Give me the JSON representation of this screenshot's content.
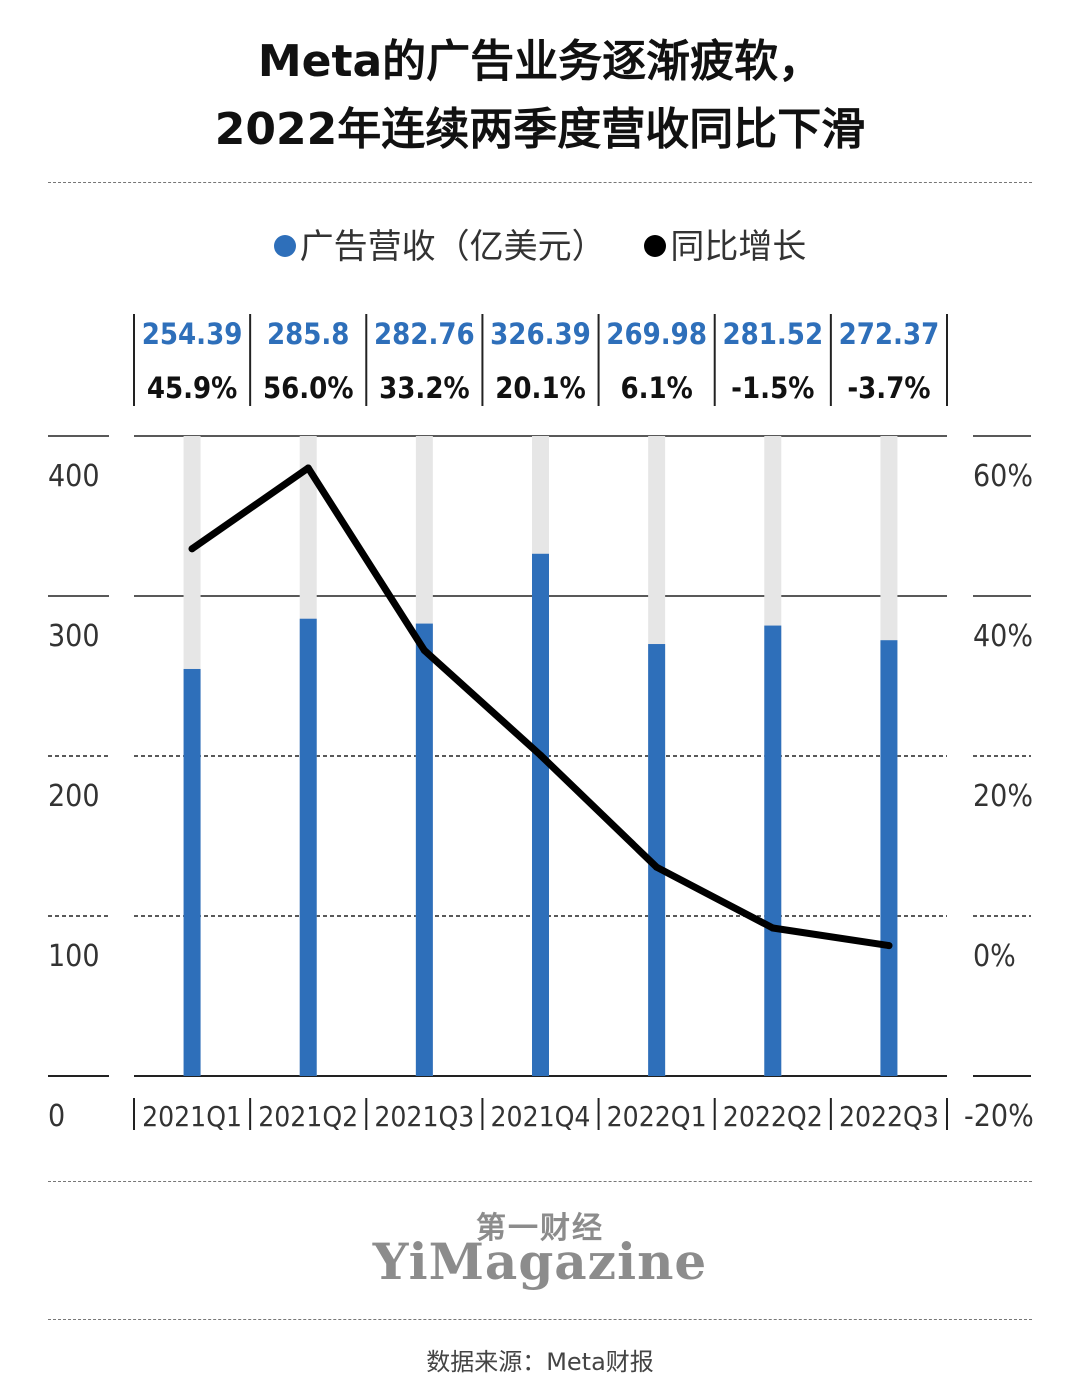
{
  "title": {
    "line1": "Meta的广告业务逐渐疲软，",
    "line2": "2022年连续两季度营收同比下滑"
  },
  "legend": {
    "revenue_label": "广告营收（亿美元）",
    "growth_label": "同比增长"
  },
  "colors": {
    "bar": "#2e6fba",
    "bar_track": "#e6e6e6",
    "line": "#000000",
    "value_text": "#2e6fba",
    "axis_text": "#333333"
  },
  "chart_data": {
    "type": "bar+line",
    "title": "Meta的广告业务逐渐疲软，2022年连续两季度营收同比下滑",
    "categories": [
      "2021Q1",
      "2021Q2",
      "2021Q3",
      "2021Q4",
      "2022Q1",
      "2022Q2",
      "2022Q3"
    ],
    "series": [
      {
        "name": "广告营收（亿美元）",
        "type": "bar",
        "axis": "left",
        "values": [
          254.39,
          285.8,
          282.76,
          326.39,
          269.98,
          281.52,
          272.37
        ],
        "labels": [
          "254.39",
          "285.8",
          "282.76",
          "326.39",
          "269.98",
          "281.52",
          "272.37"
        ]
      },
      {
        "name": "同比增长",
        "type": "line",
        "axis": "right",
        "values": [
          45.9,
          56.0,
          33.2,
          20.1,
          6.1,
          -1.5,
          -3.7
        ],
        "labels": [
          "45.9%",
          "56.0%",
          "33.2%",
          "20.1%",
          "6.1%",
          "-1.5%",
          "-3.7%"
        ]
      }
    ],
    "left_axis": {
      "ylim": [
        0,
        400
      ],
      "ticks": [
        "0",
        "100",
        "200",
        "300",
        "400"
      ]
    },
    "right_axis": {
      "ylim": [
        -20,
        60
      ],
      "ticks": [
        "-20%",
        "0%",
        "20%",
        "40%",
        "60%"
      ]
    },
    "bar_track_max": 400
  },
  "brand": {
    "cn": "第一财经",
    "en": "YiMagazine"
  },
  "source": "数据来源：Meta财报"
}
